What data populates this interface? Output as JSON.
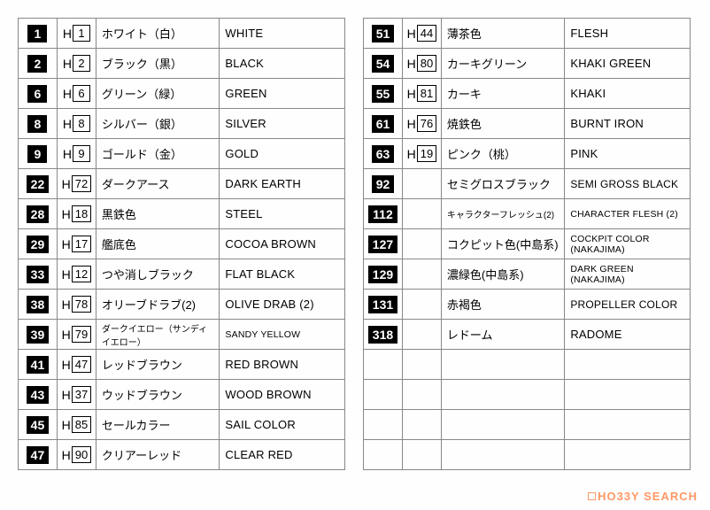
{
  "left": [
    {
      "c1": "1",
      "h": "1",
      "jp": "ホワイト（白）",
      "en": "WHITE"
    },
    {
      "c1": "2",
      "h": "2",
      "jp": "ブラック（黒）",
      "en": "BLACK"
    },
    {
      "c1": "6",
      "h": "6",
      "jp": "グリーン（緑）",
      "en": "GREEN"
    },
    {
      "c1": "8",
      "h": "8",
      "jp": "シルバー（銀）",
      "en": "SILVER"
    },
    {
      "c1": "9",
      "h": "9",
      "jp": "ゴールド（金）",
      "en": "GOLD"
    },
    {
      "c1": "22",
      "h": "72",
      "jp": "ダークアース",
      "en": "DARK EARTH"
    },
    {
      "c1": "28",
      "h": "18",
      "jp": "黒鉄色",
      "en": "STEEL"
    },
    {
      "c1": "29",
      "h": "17",
      "jp": "艦底色",
      "en": "COCOA BROWN"
    },
    {
      "c1": "33",
      "h": "12",
      "jp": "つや消しブラック",
      "en": "FLAT BLACK"
    },
    {
      "c1": "38",
      "h": "78",
      "jp": "オリーブドラブ(2)",
      "en": "OLIVE DRAB (2)"
    },
    {
      "c1": "39",
      "h": "79",
      "jp": "ダークイエロー（サンディイエロー）",
      "en": "SANDY YELLOW",
      "jpSmall": true,
      "enSmall": true
    },
    {
      "c1": "41",
      "h": "47",
      "jp": "レッドブラウン",
      "en": "RED BROWN"
    },
    {
      "c1": "43",
      "h": "37",
      "jp": "ウッドブラウン",
      "en": "WOOD BROWN"
    },
    {
      "c1": "45",
      "h": "85",
      "jp": "セールカラー",
      "en": "SAIL COLOR"
    },
    {
      "c1": "47",
      "h": "90",
      "jp": "クリアーレッド",
      "en": "CLEAR RED"
    }
  ],
  "right": [
    {
      "c1": "51",
      "h": "44",
      "jp": "薄茶色",
      "en": "FLESH"
    },
    {
      "c1": "54",
      "h": "80",
      "jp": "カーキグリーン",
      "en": "KHAKI GREEN"
    },
    {
      "c1": "55",
      "h": "81",
      "jp": "カーキ",
      "en": "KHAKI"
    },
    {
      "c1": "61",
      "h": "76",
      "jp": "焼鉄色",
      "en": "BURNT IRON"
    },
    {
      "c1": "63",
      "h": "19",
      "jp": "ピンク（桃）",
      "en": "PINK"
    },
    {
      "c1": "92",
      "h": "",
      "jp": "セミグロスブラック",
      "en": "SEMI GROSS BLACK",
      "enMed": true
    },
    {
      "c1": "112",
      "h": "",
      "jp": "キャラクターフレッシュ(2)",
      "en": "CHARACTER FLESH (2)",
      "jpSmall": true,
      "enSmall": true
    },
    {
      "c1": "127",
      "h": "",
      "jp": "コクピット色(中島系)",
      "en": "COCKPIT COLOR (NAKAJIMA)",
      "enSmall": true
    },
    {
      "c1": "129",
      "h": "",
      "jp": "濃緑色(中島系)",
      "en": "DARK GREEN (NAKAJIMA)",
      "enSmall": true
    },
    {
      "c1": "131",
      "h": "",
      "jp": "赤褐色",
      "en": "PROPELLER COLOR",
      "enMed": true
    },
    {
      "c1": "318",
      "h": "",
      "jp": "レドーム",
      "en": "RADOME"
    },
    {
      "c1": "",
      "h": "",
      "jp": "",
      "en": ""
    },
    {
      "c1": "",
      "h": "",
      "jp": "",
      "en": ""
    },
    {
      "c1": "",
      "h": "",
      "jp": "",
      "en": ""
    },
    {
      "c1": "",
      "h": "",
      "jp": "",
      "en": ""
    }
  ],
  "watermark": "HO33Y SEARCH"
}
